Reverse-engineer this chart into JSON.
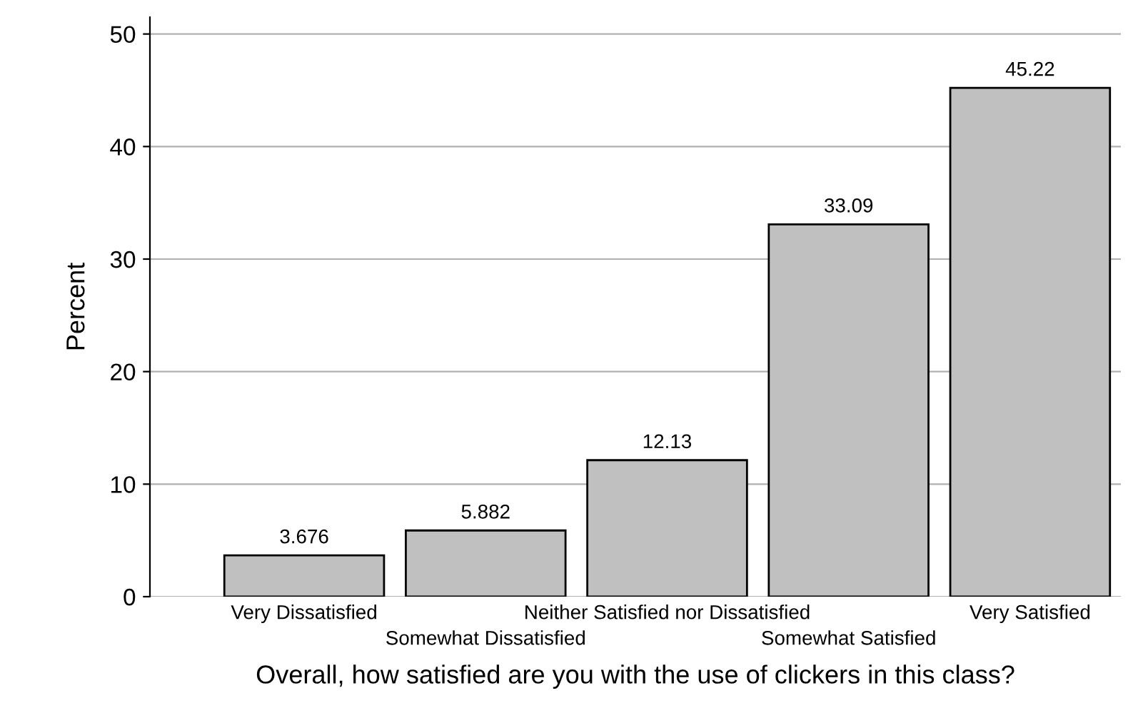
{
  "chart_data": {
    "type": "bar",
    "xlabel": "Overall, how satisfied are you with the use of clickers in this class?",
    "ylabel": "Percent",
    "categories": [
      "Very Dissatisfied",
      "Somewhat Dissatisfied",
      "Neither Satisfied nor Dissatisfied",
      "Somewhat Satisfied",
      "Very Satisfied"
    ],
    "values": [
      3.676,
      5.882,
      12.13,
      33.09,
      45.22
    ],
    "color": "#c0c0c0",
    "ylim": [
      0,
      51.5
    ],
    "yticks": [
      0,
      10,
      20,
      30,
      40,
      50
    ],
    "grid": "y",
    "data_labels": true
  }
}
